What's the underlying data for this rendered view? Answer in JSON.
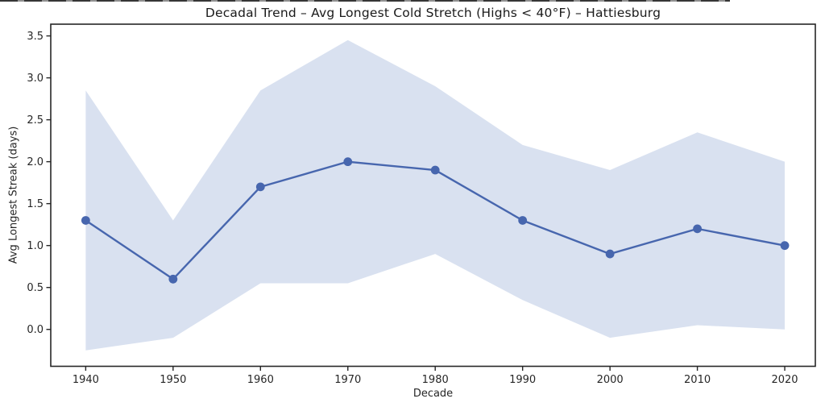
{
  "figure": {
    "background": "#ffffff"
  },
  "chart_data": {
    "type": "line",
    "title": "Decadal Trend – Avg Longest Cold Stretch (Highs < 40°F) – Hattiesburg",
    "xlabel": "Decade",
    "ylabel": "Avg Longest Streak (days)",
    "x": [
      1940,
      1950,
      1960,
      1970,
      1980,
      1990,
      2000,
      2010,
      2020
    ],
    "series": [
      {
        "name": "avg-longest-streak",
        "values": [
          1.3,
          0.6,
          1.7,
          2.0,
          1.9,
          1.3,
          0.9,
          1.2,
          1.0
        ],
        "color": "#4766ae",
        "marker": "circle"
      }
    ],
    "band": {
      "name": "shaded-range",
      "upper": [
        2.85,
        1.3,
        2.85,
        3.45,
        2.9,
        2.2,
        1.9,
        2.35,
        2.0
      ],
      "lower": [
        -0.25,
        -0.1,
        0.55,
        0.55,
        0.9,
        0.35,
        -0.1,
        0.05,
        0.0
      ],
      "color": "#d9e1f0"
    },
    "xticks": [
      1940,
      1950,
      1960,
      1970,
      1980,
      1990,
      2000,
      2010,
      2020
    ],
    "yticks": [
      0.0,
      0.5,
      1.0,
      1.5,
      2.0,
      2.5,
      3.0,
      3.5
    ],
    "xlim": [
      1936,
      2023.5
    ],
    "ylim": [
      -0.44,
      3.64
    ],
    "grid": false,
    "legend": "none",
    "axis_color": "#262626"
  }
}
